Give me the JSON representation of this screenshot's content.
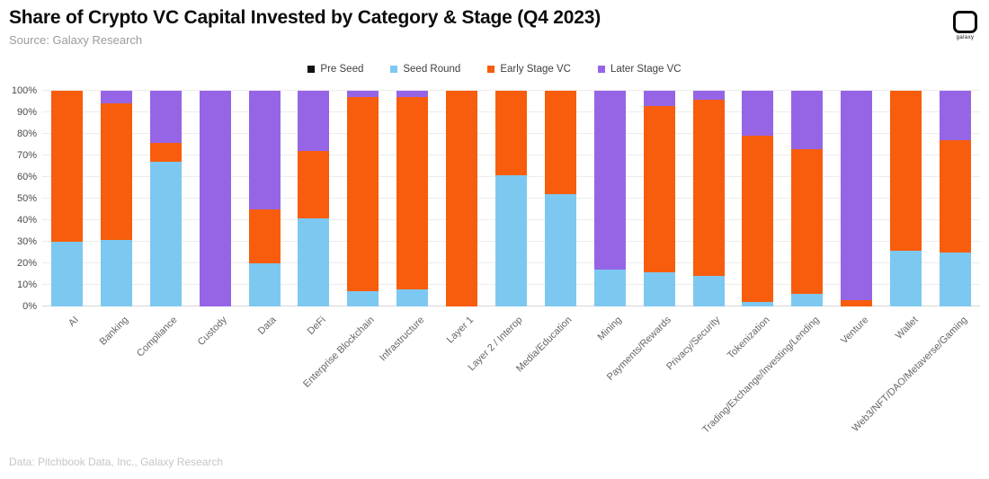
{
  "header": {
    "title": "Share of Crypto VC Capital Invested by Category & Stage (Q4 2023)",
    "source": "Source: Galaxy Research",
    "logo_text": "galaxy"
  },
  "footer": {
    "credit": "Data: Pitchbook Data, Inc., Galaxy Research"
  },
  "chart_data": {
    "type": "bar",
    "stacked": true,
    "percent": true,
    "title": "Share of Crypto VC Capital Invested by Category & Stage (Q4 2023)",
    "xlabel": "",
    "ylabel": "",
    "ylim": [
      0,
      100
    ],
    "grid": true,
    "legend_position": "top-center",
    "yticks": [
      "0%",
      "10%",
      "20%",
      "30%",
      "40%",
      "50%",
      "60%",
      "70%",
      "80%",
      "90%",
      "100%"
    ],
    "categories": [
      "AI",
      "Banking",
      "Compliance",
      "Custody",
      "Data",
      "DeFi",
      "Enterprise Blockchain",
      "Infrastructure",
      "Layer 1",
      "Layer 2 / Interop",
      "Media/Education",
      "Mining",
      "Payments/Rewards",
      "Privacy/Security",
      "Tokenization",
      "Trading/Exchange/Investing/Lending",
      "Venture",
      "Wallet",
      "Web3/NFT/DAO/Metaverse/Gaming"
    ],
    "series": [
      {
        "name": "Pre Seed",
        "color": "#111111",
        "values": [
          0,
          0,
          0,
          0,
          0,
          0,
          0,
          0,
          0,
          0,
          0,
          0,
          0,
          0,
          0,
          0,
          0,
          0,
          0
        ]
      },
      {
        "name": "Seed Round",
        "color": "#7dc8f0",
        "values": [
          30,
          31,
          67,
          0,
          20,
          41,
          7,
          8,
          0,
          61,
          52,
          17,
          16,
          14,
          2,
          6,
          0,
          26,
          25
        ]
      },
      {
        "name": "Early Stage VC",
        "color": "#f75d0c",
        "values": [
          70,
          63,
          9,
          0,
          25,
          31,
          90,
          89,
          100,
          39,
          48,
          0,
          77,
          82,
          77,
          67,
          3,
          74,
          52
        ]
      },
      {
        "name": "Later Stage VC",
        "color": "#9565e6",
        "values": [
          0,
          6,
          24,
          100,
          55,
          28,
          3,
          3,
          0,
          0,
          0,
          83,
          7,
          4,
          21,
          27,
          97,
          0,
          23
        ]
      }
    ]
  }
}
